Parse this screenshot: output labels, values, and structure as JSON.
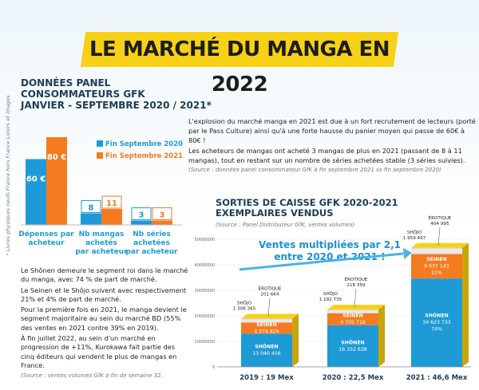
{
  "title": "LE MARCHÉ DU MANGA EN 2022",
  "sidenote": "* Livres physiques neufs France hors France Loisirs et images",
  "panel": {
    "title_line1": "DONNÉES PANEL CONSOMMATEURS GFK",
    "title_line2": "JANVIER - SEPTEMBRE 2020 / 2021*"
  },
  "intro": {
    "p1": "L'explosion du marché manga en 2021 est due à un fort recrutement de lecteurs (porté par le Pass Culture) ainsi qu'à une forte hausse du panier moyen qui passe de 60€ à 80€ !",
    "p2": "Les acheteurs de mangas ont acheté 3 mangas de plus en 2021 (passant de 8 à 11 mangas), tout en restant sur un nombre de séries achetées stable (3 séries suivies).",
    "source": "(Source : données panel consommateur GfK à fin septembre 2021 vs fin septembre 2020)"
  },
  "left_text": {
    "p1": "Le Shônen demeure le segment roi dans le marché du manga, avec 74 % de part de marché.",
    "p2": "Le Seinen et le Shôjo suivent avec respectivement 21% et 4% de part de marché.",
    "p3": "Pour la première fois en 2021, le manga devient le segment majoritaire au sein du marché BD (55% des ventes en 2021 contre 39% en 2019).",
    "p4": "À fin juillet 2022, au sein d'un marché en progression de +11%, Kurokawa fait partie des cinq éditeurs qui vendent le plus de mangas en France.",
    "source": "(Source : ventes volumes GfK à fin de semaine 32."
  },
  "sorties": {
    "title_line1": "SORTIES DE CAISSE GFK 2020-2021",
    "title_line2": "EXEMPLAIRES VENDUS",
    "source": "(Source : Panel Distributeur GfK, ventes volumes)",
    "callout_line1": "Ventes multipliées par 2,1",
    "callout_line2": "entre 2020 et 2021 !"
  },
  "colors": {
    "blue": "#1e9ad6",
    "orange": "#f47b20",
    "yellow": "#f7d117",
    "navy": "#1d3c57",
    "dark": "#1c1c1c"
  },
  "chart_data": [
    {
      "type": "bar",
      "categories": [
        "Dépenses par acheteur",
        "Nb mangas achetés par acheteur",
        "Nb séries achetées par acheteur"
      ],
      "series": [
        {
          "name": "Fin Septembre 2020",
          "values": [
            60,
            8,
            3
          ],
          "labels": [
            "60 €",
            "8",
            "3"
          ]
        },
        {
          "name": "Fin Septembre 2021",
          "values": [
            80,
            11,
            3
          ],
          "labels": [
            "80 €",
            "11",
            "3"
          ]
        }
      ],
      "legend": "right"
    },
    {
      "type": "bar",
      "stacked": true,
      "categories": [
        "2019 : 19 Mex",
        "2020 : 22,5 Mex",
        "2021 : 46,6 Mex"
      ],
      "y_ticks": [
        "0",
        "10000000",
        "20000000",
        "30000000",
        "40000000",
        "50000000"
      ],
      "ylim": [
        0,
        50000000
      ],
      "series": [
        {
          "name": "SHÔNEN",
          "values": [
            13040456,
            16332638,
            34623733
          ],
          "labels": [
            "13 040 456",
            "16 332 638",
            "34 623 733"
          ],
          "pct": [
            "",
            "",
            "74%"
          ]
        },
        {
          "name": "SEINEN",
          "values": [
            4374829,
            4705719,
            9637143
          ],
          "labels": [
            "4 374 829",
            "4 705 719",
            "9 637 143"
          ],
          "pct": [
            "",
            "",
            "21%"
          ]
        },
        {
          "name": "SHÔJO",
          "values": [
            1308365,
            1192735,
            1959497
          ],
          "labels": [
            "1 308 365",
            "1 192 735",
            "1 959 497"
          ]
        },
        {
          "name": "ÉROTIQUE",
          "values": [
            201664,
            218359,
            404995
          ],
          "labels": [
            "201 664",
            "218 359",
            "404 995"
          ]
        }
      ]
    }
  ]
}
